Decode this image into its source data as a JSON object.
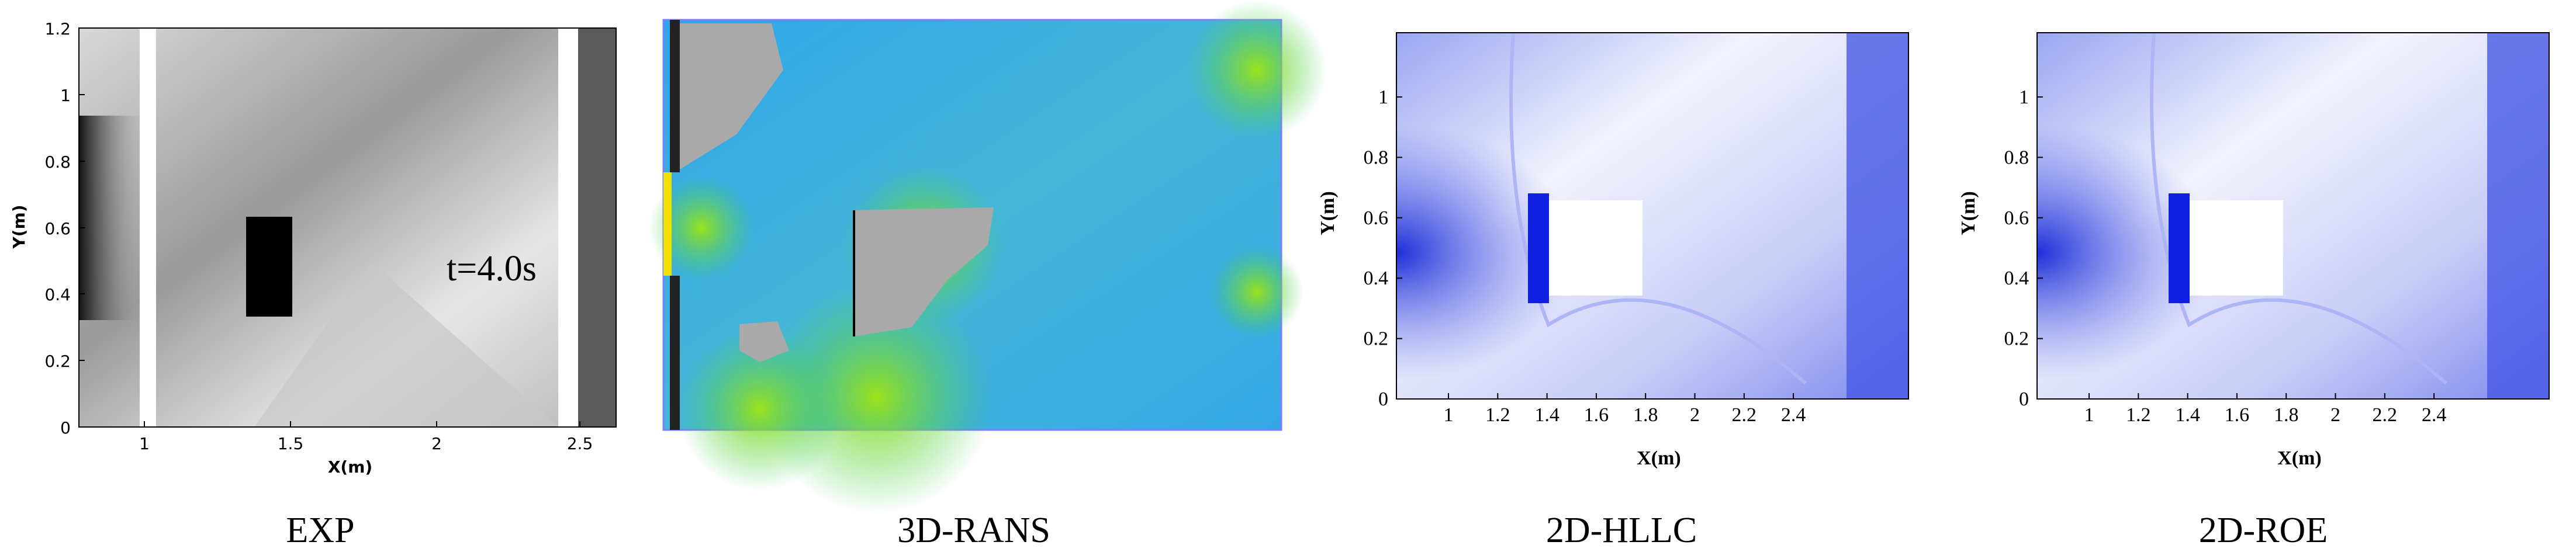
{
  "panels": [
    {
      "caption": "EXP",
      "annotation": "t=4.0s",
      "x_label": "X(m)",
      "y_label": "Y(m)",
      "x_ticks": [
        "1",
        "1.5",
        "2",
        "2.5"
      ],
      "y_ticks": [
        "0",
        "0.2",
        "0.4",
        "0.6",
        "0.8",
        "1",
        "1.2"
      ]
    },
    {
      "caption": "3D-RANS"
    },
    {
      "caption": "2D-HLLC",
      "x_label": "X(m)",
      "y_label": "Y(m)",
      "x_ticks": [
        "1",
        "1.2",
        "1.4",
        "1.6",
        "1.8",
        "2",
        "2.2",
        "2.4"
      ],
      "y_ticks": [
        "0",
        "0.2",
        "0.4",
        "0.6",
        "0.8",
        "1"
      ]
    },
    {
      "caption": "2D-ROE",
      "x_label": "X(m)",
      "y_label": "Y(m)",
      "x_ticks": [
        "1",
        "1.2",
        "1.4",
        "1.6",
        "1.8",
        "2",
        "2.2",
        "2.4"
      ],
      "y_ticks": [
        "0",
        "0.2",
        "0.4",
        "0.6",
        "0.8",
        "1"
      ]
    }
  ]
}
